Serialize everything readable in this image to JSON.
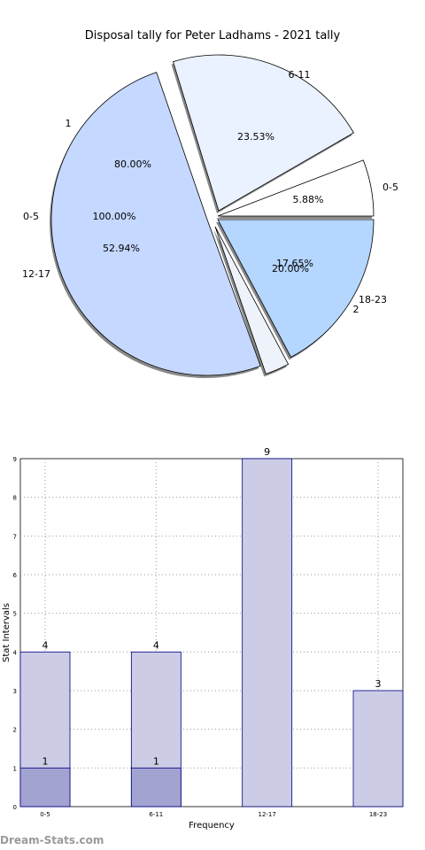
{
  "chart_data": [
    {
      "type": "pie",
      "title": "Disposal tally for Peter Ladhams - 2021 tally",
      "rings": [
        {
          "name": "outer",
          "categories": [
            "6-11",
            "0-5",
            "18-23",
            "2",
            "1"
          ],
          "values": [
            23.53,
            5.88,
            17.65,
            20.0,
            80.0
          ],
          "labels": [
            "23.53%",
            "5.88%",
            "17.65%",
            "20.00%",
            "80.00%"
          ],
          "colors": [
            "#eaf1ff",
            "#ffffff",
            "#b5d6ff",
            "#eef2fb",
            "#c5d8ff"
          ]
        },
        {
          "name": "inner",
          "categories": [
            "0-5",
            "12-17"
          ],
          "labels": [
            "100.00%",
            "52.94%"
          ]
        }
      ]
    },
    {
      "type": "bar",
      "xlabel": "Frequency",
      "ylabel": "Stat Intervals",
      "categories": [
        "0-5",
        "6-11",
        "12-17",
        "18-23"
      ],
      "series": [
        {
          "values": [
            4,
            4,
            9,
            3
          ],
          "color": "#cccce6"
        },
        {
          "values": [
            1,
            1,
            null,
            null
          ],
          "color": "#a3a3d1"
        }
      ],
      "ylim": [
        0,
        9
      ],
      "yticks": [
        "0",
        "1",
        "2",
        "3",
        "4",
        "5",
        "6",
        "7",
        "8",
        "9"
      ],
      "grid": true
    }
  ],
  "watermark": "Dream-Stats.com"
}
